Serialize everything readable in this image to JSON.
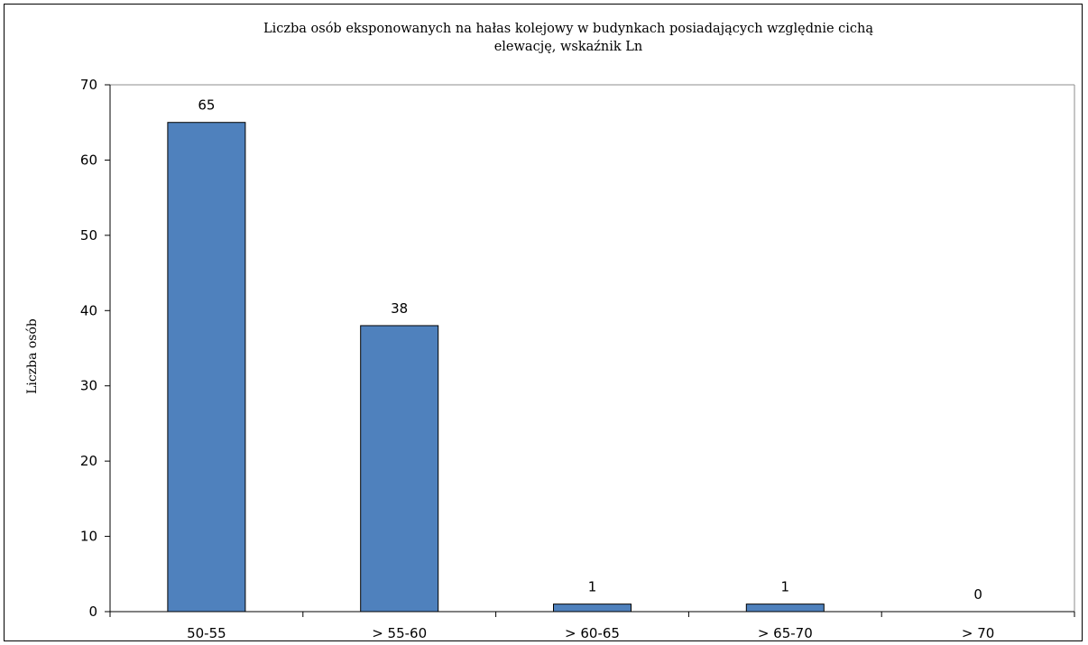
{
  "chart_data": {
    "type": "bar",
    "title_line1": "Liczba osób  eksponowanych na hałas  kolejowy w budynkach posiadających względnie cichą",
    "title_line2": "elewację, wskaźnik Ln",
    "xlabel": "",
    "ylabel": "Liczba osób",
    "categories": [
      "50-55",
      "> 55-60",
      "> 60-65",
      "> 65-70",
      "> 70"
    ],
    "values": [
      65,
      38,
      1,
      1,
      0
    ],
    "ylim": [
      0,
      70
    ],
    "yticks": [
      0,
      10,
      20,
      30,
      40,
      50,
      60,
      70
    ],
    "grid": false,
    "legend": "none",
    "bar_color": "#4f81bd",
    "bar_edge_color": "#000000"
  }
}
